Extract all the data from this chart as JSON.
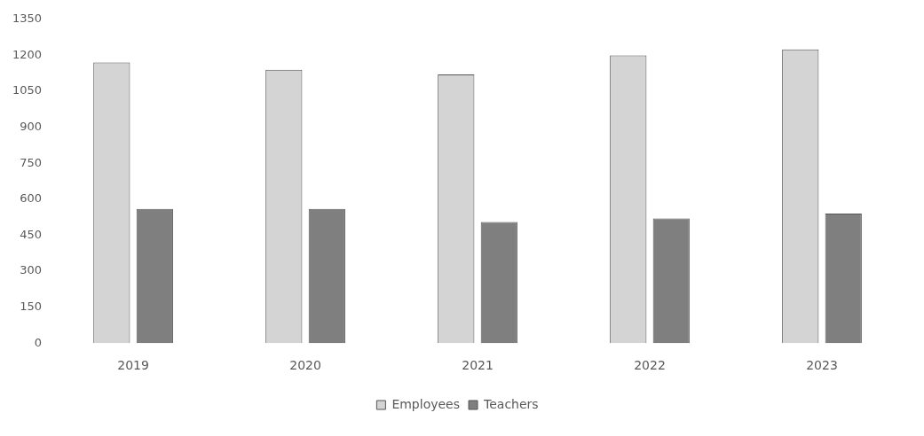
{
  "chart_data": {
    "type": "bar",
    "categories": [
      "2019",
      "2020",
      "2021",
      "2022",
      "2023"
    ],
    "series": [
      {
        "name": "Employees",
        "color": "#d4d4d4",
        "values": [
          1170,
          1140,
          1120,
          1200,
          1225
        ]
      },
      {
        "name": "Teachers",
        "color": "#7f7f7f",
        "values": [
          560,
          560,
          505,
          520,
          540
        ]
      }
    ],
    "ylim": [
      0,
      1350
    ],
    "yticks": [
      0,
      150,
      300,
      450,
      600,
      750,
      900,
      1050,
      1200,
      1350
    ],
    "grid": false,
    "legend": "bottom"
  }
}
